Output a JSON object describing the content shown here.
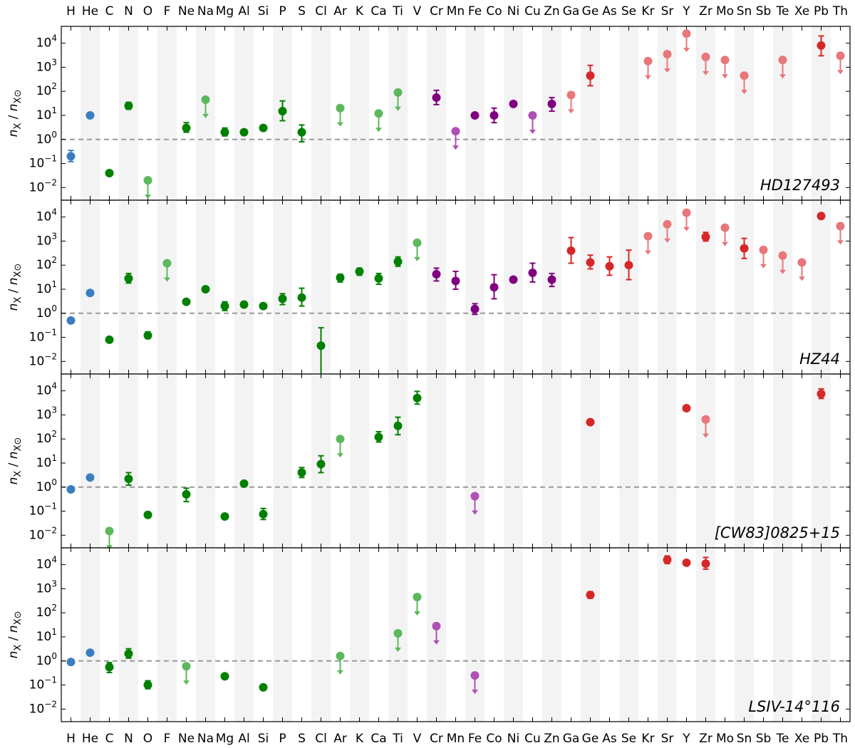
{
  "colors": {
    "light": "#2ca02c",
    "light_ul": "#5cb85c",
    "cno": "#008000",
    "blue": "#3a7ebf",
    "iron": "#800080",
    "iron_ul": "#b04fb5",
    "heavy": "#d62728",
    "heavy_ul": "#e8767a",
    "stripe": "#f3f3f3",
    "dashed": "#999999"
  },
  "chart_data": {
    "type": "scatter",
    "y_scale": "log",
    "ylim": [
      0.003,
      50000
    ],
    "y_ticks": [
      "10^-2",
      "10^-1",
      "10^0",
      "10^1",
      "10^2",
      "10^3",
      "10^4"
    ],
    "ylabel": "n_X / n_X⊙",
    "reference_line": 1,
    "elements": [
      "H",
      "He",
      "C",
      "N",
      "O",
      "F",
      "Ne",
      "Na",
      "Mg",
      "Al",
      "Si",
      "P",
      "S",
      "Cl",
      "Ar",
      "K",
      "Ca",
      "Ti",
      "V",
      "Cr",
      "Mn",
      "Fe",
      "Co",
      "Ni",
      "Cu",
      "Zn",
      "Ga",
      "Ge",
      "As",
      "Se",
      "Kr",
      "Sr",
      "Y",
      "Zr",
      "Mo",
      "Sn",
      "Sb",
      "Te",
      "Xe",
      "Pb",
      "Th"
    ],
    "panels": [
      {
        "name": "HD127493",
        "points": [
          {
            "el": "H",
            "v": 0.2,
            "lo": 0.12,
            "hi": 0.35,
            "g": "blue"
          },
          {
            "el": "He",
            "v": 10,
            "g": "blue"
          },
          {
            "el": "C",
            "v": 0.04,
            "g": "light"
          },
          {
            "el": "N",
            "v": 25,
            "lo": 18,
            "hi": 35,
            "g": "light"
          },
          {
            "el": "O",
            "v": 0.02,
            "ul": true,
            "g": "light"
          },
          {
            "el": "Ne",
            "v": 3,
            "lo": 2,
            "hi": 5,
            "g": "light"
          },
          {
            "el": "Na",
            "v": 45,
            "ul": true,
            "g": "light"
          },
          {
            "el": "Mg",
            "v": 2,
            "lo": 1.4,
            "hi": 3,
            "g": "light"
          },
          {
            "el": "Al",
            "v": 2,
            "g": "light"
          },
          {
            "el": "Si",
            "v": 3,
            "g": "light"
          },
          {
            "el": "P",
            "v": 15,
            "lo": 6,
            "hi": 40,
            "g": "light"
          },
          {
            "el": "S",
            "v": 2,
            "lo": 0.8,
            "hi": 4,
            "g": "light"
          },
          {
            "el": "Ar",
            "v": 20,
            "ul": true,
            "g": "light"
          },
          {
            "el": "Ca",
            "v": 12,
            "ul": true,
            "g": "light"
          },
          {
            "el": "Ti",
            "v": 90,
            "ul": true,
            "g": "light"
          },
          {
            "el": "Cr",
            "v": 55,
            "lo": 28,
            "hi": 110,
            "g": "iron"
          },
          {
            "el": "Mn",
            "v": 2.2,
            "ul": true,
            "g": "iron"
          },
          {
            "el": "Fe",
            "v": 10,
            "g": "iron"
          },
          {
            "el": "Co",
            "v": 10,
            "lo": 5,
            "hi": 20,
            "g": "iron"
          },
          {
            "el": "Ni",
            "v": 30,
            "g": "iron"
          },
          {
            "el": "Cu",
            "v": 10,
            "ul": true,
            "g": "iron"
          },
          {
            "el": "Zn",
            "v": 30,
            "lo": 15,
            "hi": 55,
            "g": "iron"
          },
          {
            "el": "Ga",
            "v": 70,
            "ul": true,
            "g": "heavy"
          },
          {
            "el": "Ge",
            "v": 450,
            "lo": 170,
            "hi": 1200,
            "g": "heavy"
          },
          {
            "el": "Kr",
            "v": 1800,
            "ul": true,
            "g": "heavy"
          },
          {
            "el": "Sr",
            "v": 3500,
            "ul": true,
            "g": "heavy"
          },
          {
            "el": "Y",
            "v": 25000,
            "ul": true,
            "g": "heavy"
          },
          {
            "el": "Zr",
            "v": 2700,
            "ul": true,
            "g": "heavy"
          },
          {
            "el": "Mo",
            "v": 2000,
            "ul": true,
            "g": "heavy"
          },
          {
            "el": "Sn",
            "v": 450,
            "ul": true,
            "g": "heavy"
          },
          {
            "el": "Te",
            "v": 2000,
            "ul": true,
            "g": "heavy"
          },
          {
            "el": "Pb",
            "v": 8000,
            "lo": 3000,
            "hi": 20000,
            "g": "heavy"
          },
          {
            "el": "Th",
            "v": 3000,
            "ul": true,
            "g": "heavy"
          }
        ]
      },
      {
        "name": "HZ44",
        "points": [
          {
            "el": "H",
            "v": 0.5,
            "g": "blue"
          },
          {
            "el": "He",
            "v": 7,
            "g": "blue"
          },
          {
            "el": "C",
            "v": 0.08,
            "g": "light"
          },
          {
            "el": "N",
            "v": 28,
            "lo": 18,
            "hi": 45,
            "g": "light"
          },
          {
            "el": "O",
            "v": 0.12,
            "lo": 0.09,
            "hi": 0.17,
            "g": "light"
          },
          {
            "el": "F",
            "v": 120,
            "ul": true,
            "g": "light"
          },
          {
            "el": "Ne",
            "v": 3,
            "g": "light"
          },
          {
            "el": "Na",
            "v": 10,
            "g": "light"
          },
          {
            "el": "Mg",
            "v": 2,
            "lo": 1.3,
            "hi": 3,
            "g": "light"
          },
          {
            "el": "Al",
            "v": 2.3,
            "g": "light"
          },
          {
            "el": "Si",
            "v": 2,
            "g": "light"
          },
          {
            "el": "P",
            "v": 4,
            "lo": 2.3,
            "hi": 6.5,
            "g": "light"
          },
          {
            "el": "S",
            "v": 4.5,
            "lo": 2,
            "hi": 11,
            "g": "light"
          },
          {
            "el": "Cl",
            "v": 0.045,
            "lo": 0.003,
            "hi": 0.25,
            "g": "light"
          },
          {
            "el": "Ar",
            "v": 30,
            "lo": 20,
            "hi": 42,
            "g": "light"
          },
          {
            "el": "K",
            "v": 55,
            "lo": 38,
            "hi": 75,
            "g": "light"
          },
          {
            "el": "Ca",
            "v": 28,
            "lo": 16,
            "hi": 45,
            "g": "light"
          },
          {
            "el": "Ti",
            "v": 140,
            "lo": 90,
            "hi": 220,
            "g": "light"
          },
          {
            "el": "V",
            "v": 850,
            "ul": true,
            "g": "light"
          },
          {
            "el": "Cr",
            "v": 42,
            "lo": 22,
            "hi": 75,
            "g": "iron"
          },
          {
            "el": "Mn",
            "v": 22,
            "lo": 10,
            "hi": 55,
            "g": "iron"
          },
          {
            "el": "Fe",
            "v": 1.5,
            "lo": 0.9,
            "hi": 2.5,
            "g": "iron"
          },
          {
            "el": "Co",
            "v": 12,
            "lo": 4,
            "hi": 40,
            "g": "iron"
          },
          {
            "el": "Ni",
            "v": 25,
            "g": "iron"
          },
          {
            "el": "Cu",
            "v": 48,
            "lo": 20,
            "hi": 120,
            "g": "iron"
          },
          {
            "el": "Zn",
            "v": 25,
            "lo": 13,
            "hi": 45,
            "g": "iron"
          },
          {
            "el": "Ga",
            "v": 400,
            "lo": 120,
            "hi": 1400,
            "g": "heavy"
          },
          {
            "el": "Ge",
            "v": 130,
            "lo": 70,
            "hi": 260,
            "g": "heavy"
          },
          {
            "el": "As",
            "v": 90,
            "lo": 38,
            "hi": 220,
            "g": "heavy"
          },
          {
            "el": "Se",
            "v": 100,
            "lo": 25,
            "hi": 420,
            "g": "heavy"
          },
          {
            "el": "Kr",
            "v": 1600,
            "ul": true,
            "g": "heavy"
          },
          {
            "el": "Sr",
            "v": 5000,
            "ul": true,
            "g": "heavy"
          },
          {
            "el": "Y",
            "v": 15000,
            "ul": true,
            "g": "heavy"
          },
          {
            "el": "Zr",
            "v": 1500,
            "lo": 1000,
            "hi": 2300,
            "g": "heavy"
          },
          {
            "el": "Mo",
            "v": 3600,
            "ul": true,
            "g": "heavy"
          },
          {
            "el": "Sn",
            "v": 500,
            "lo": 190,
            "hi": 1300,
            "g": "heavy"
          },
          {
            "el": "Sb",
            "v": 430,
            "ul": true,
            "g": "heavy"
          },
          {
            "el": "Te",
            "v": 250,
            "ul": true,
            "g": "heavy"
          },
          {
            "el": "Xe",
            "v": 130,
            "ul": true,
            "g": "heavy"
          },
          {
            "el": "Pb",
            "v": 11000,
            "lo": 9000,
            "hi": 13000,
            "g": "heavy"
          },
          {
            "el": "Th",
            "v": 4200,
            "ul": true,
            "g": "heavy"
          }
        ]
      },
      {
        "name": "[CW83]0825+15",
        "points": [
          {
            "el": "H",
            "v": 0.8,
            "g": "blue"
          },
          {
            "el": "He",
            "v": 2.5,
            "g": "blue"
          },
          {
            "el": "C",
            "v": 0.015,
            "ul": true,
            "g": "light"
          },
          {
            "el": "N",
            "v": 2.2,
            "lo": 1.2,
            "hi": 4,
            "g": "light"
          },
          {
            "el": "O",
            "v": 0.07,
            "g": "light"
          },
          {
            "el": "Ne",
            "v": 0.5,
            "lo": 0.25,
            "hi": 0.9,
            "g": "light"
          },
          {
            "el": "Mg",
            "v": 0.06,
            "g": "light"
          },
          {
            "el": "Al",
            "v": 1.4,
            "g": "light"
          },
          {
            "el": "Si",
            "v": 0.075,
            "lo": 0.045,
            "hi": 0.13,
            "g": "light"
          },
          {
            "el": "S",
            "v": 4,
            "lo": 2.5,
            "hi": 6.5,
            "g": "light"
          },
          {
            "el": "Cl",
            "v": 9,
            "lo": 4,
            "hi": 20,
            "g": "light"
          },
          {
            "el": "Ar",
            "v": 100,
            "ul": true,
            "g": "light"
          },
          {
            "el": "Ca",
            "v": 120,
            "lo": 75,
            "hi": 200,
            "g": "light"
          },
          {
            "el": "Ti",
            "v": 350,
            "lo": 150,
            "hi": 800,
            "g": "light"
          },
          {
            "el": "V",
            "v": 5000,
            "lo": 2800,
            "hi": 9500,
            "g": "light"
          },
          {
            "el": "Fe",
            "v": 0.42,
            "ul": true,
            "g": "iron"
          },
          {
            "el": "Ge",
            "v": 500,
            "g": "heavy"
          },
          {
            "el": "Y",
            "v": 1900,
            "g": "heavy"
          },
          {
            "el": "Zr",
            "v": 650,
            "ul": true,
            "g": "heavy"
          },
          {
            "el": "Pb",
            "v": 7500,
            "lo": 4800,
            "hi": 12000,
            "g": "heavy"
          }
        ]
      },
      {
        "name": "LSIV-14°116",
        "points": [
          {
            "el": "H",
            "v": 0.9,
            "g": "blue"
          },
          {
            "el": "He",
            "v": 2.2,
            "g": "blue"
          },
          {
            "el": "C",
            "v": 0.55,
            "lo": 0.33,
            "hi": 0.85,
            "g": "light"
          },
          {
            "el": "N",
            "v": 2,
            "lo": 1.3,
            "hi": 3.2,
            "g": "light"
          },
          {
            "el": "O",
            "v": 0.1,
            "lo": 0.07,
            "hi": 0.15,
            "g": "light"
          },
          {
            "el": "Ne",
            "v": 0.6,
            "ul": true,
            "g": "light"
          },
          {
            "el": "Mg",
            "v": 0.23,
            "g": "light"
          },
          {
            "el": "Si",
            "v": 0.08,
            "g": "light"
          },
          {
            "el": "Ar",
            "v": 1.6,
            "ul": true,
            "g": "light"
          },
          {
            "el": "Ti",
            "v": 14,
            "ul": true,
            "g": "light"
          },
          {
            "el": "V",
            "v": 450,
            "ul": true,
            "g": "light"
          },
          {
            "el": "Cr",
            "v": 28,
            "ul": true,
            "g": "iron"
          },
          {
            "el": "Fe",
            "v": 0.25,
            "ul": true,
            "g": "iron"
          },
          {
            "el": "Ge",
            "v": 550,
            "lo": 400,
            "hi": 750,
            "g": "heavy"
          },
          {
            "el": "Sr",
            "v": 16000,
            "lo": 11000,
            "hi": 23000,
            "g": "heavy"
          },
          {
            "el": "Y",
            "v": 12000,
            "g": "heavy"
          },
          {
            "el": "Zr",
            "v": 11000,
            "lo": 6500,
            "hi": 20000,
            "g": "heavy"
          }
        ]
      }
    ]
  }
}
